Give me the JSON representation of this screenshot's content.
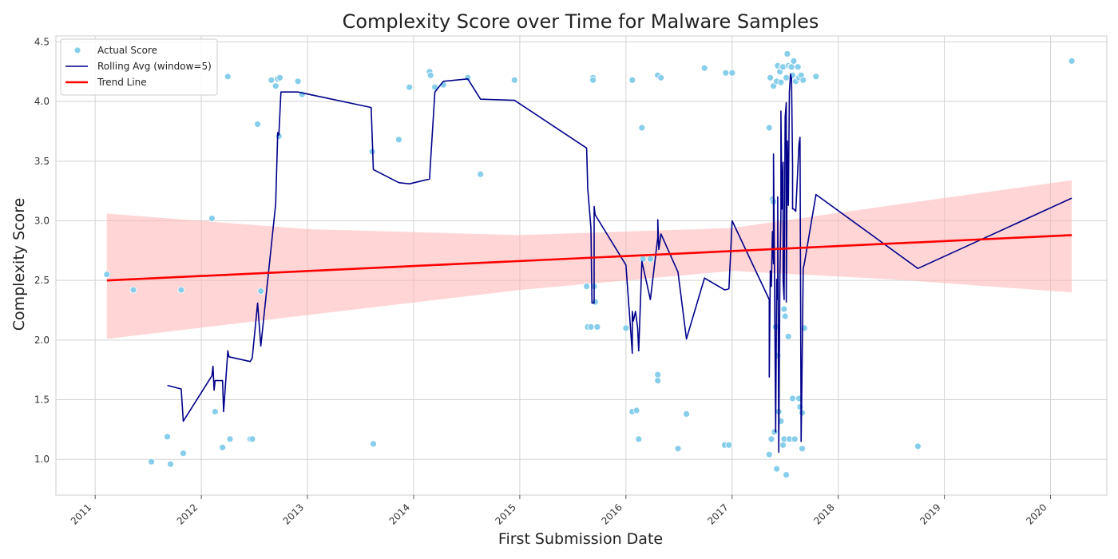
{
  "chart_data": {
    "type": "scatter",
    "title": "Complexity Score over Time for Malware Samples",
    "xlabel": "First Submission Date",
    "ylabel": "Complexity Score",
    "xlim": [
      2010.63,
      2020.53
    ],
    "ylim": [
      0.7,
      4.55
    ],
    "grid": true,
    "legend_position": "top-left",
    "x_ticks": [
      2011,
      2012,
      2013,
      2014,
      2015,
      2016,
      2017,
      2018,
      2019,
      2020
    ],
    "y_ticks": [
      1.0,
      1.5,
      2.0,
      2.5,
      3.0,
      3.5,
      4.0,
      4.5
    ],
    "colors": {
      "points": "#87ceeb",
      "rolling": "#00008b",
      "trend": "#ff0000",
      "band": "#ffb3b3"
    },
    "series": [
      {
        "name": "Actual Score",
        "kind": "scatter",
        "points": [
          [
            2011.11,
            2.55
          ],
          [
            2011.36,
            2.42
          ],
          [
            2011.53,
            0.98
          ],
          [
            2011.68,
            1.19
          ],
          [
            2011.71,
            0.96
          ],
          [
            2011.81,
            2.42
          ],
          [
            2011.83,
            1.05
          ],
          [
            2012.1,
            3.02
          ],
          [
            2012.13,
            1.4
          ],
          [
            2012.2,
            1.1
          ],
          [
            2012.25,
            4.21
          ],
          [
            2012.27,
            1.17
          ],
          [
            2012.46,
            1.17
          ],
          [
            2012.48,
            1.17
          ],
          [
            2012.53,
            3.81
          ],
          [
            2012.56,
            2.41
          ],
          [
            2012.66,
            4.18
          ],
          [
            2012.7,
            4.13
          ],
          [
            2012.72,
            4.19
          ],
          [
            2012.73,
            3.71
          ],
          [
            2012.74,
            4.2
          ],
          [
            2012.91,
            4.17
          ],
          [
            2012.95,
            4.06
          ],
          [
            2013.61,
            3.58
          ],
          [
            2013.62,
            1.13
          ],
          [
            2013.86,
            3.68
          ],
          [
            2013.96,
            4.12
          ],
          [
            2014.15,
            4.25
          ],
          [
            2014.16,
            4.22
          ],
          [
            2014.2,
            4.12
          ],
          [
            2014.28,
            4.14
          ],
          [
            2014.51,
            4.2
          ],
          [
            2014.63,
            3.39
          ],
          [
            2014.95,
            4.18
          ],
          [
            2015.63,
            2.45
          ],
          [
            2015.64,
            2.11
          ],
          [
            2015.67,
            2.11
          ],
          [
            2015.69,
            4.2
          ],
          [
            2015.69,
            4.18
          ],
          [
            2015.7,
            2.45
          ],
          [
            2015.71,
            2.32
          ],
          [
            2015.73,
            2.11
          ],
          [
            2016.0,
            2.1
          ],
          [
            2016.06,
            1.4
          ],
          [
            2016.06,
            4.18
          ],
          [
            2016.1,
            1.41
          ],
          [
            2016.12,
            1.17
          ],
          [
            2016.15,
            3.78
          ],
          [
            2016.16,
            2.68
          ],
          [
            2016.23,
            2.68
          ],
          [
            2016.3,
            1.71
          ],
          [
            2016.3,
            1.66
          ],
          [
            2016.3,
            4.22
          ],
          [
            2016.33,
            4.2
          ],
          [
            2016.49,
            1.09
          ],
          [
            2016.57,
            1.38
          ],
          [
            2016.74,
            4.28
          ],
          [
            2016.93,
            1.12
          ],
          [
            2016.94,
            4.24
          ],
          [
            2016.97,
            1.12
          ],
          [
            2017.0,
            4.24
          ],
          [
            2017.35,
            1.04
          ],
          [
            2017.35,
            3.78
          ],
          [
            2017.36,
            4.2
          ],
          [
            2017.37,
            1.17
          ],
          [
            2017.38,
            3.18
          ],
          [
            2017.39,
            3.16
          ],
          [
            2017.39,
            4.13
          ],
          [
            2017.4,
            1.23
          ],
          [
            2017.41,
            2.11
          ],
          [
            2017.42,
            0.92
          ],
          [
            2017.42,
            4.17
          ],
          [
            2017.43,
            4.3
          ],
          [
            2017.43,
            1.87
          ],
          [
            2017.44,
            1.4
          ],
          [
            2017.45,
            4.25
          ],
          [
            2017.46,
            1.32
          ],
          [
            2017.46,
            4.16
          ],
          [
            2017.47,
            4.29
          ],
          [
            2017.48,
            1.12
          ],
          [
            2017.48,
            4.29
          ],
          [
            2017.49,
            1.17
          ],
          [
            2017.49,
            2.26
          ],
          [
            2017.5,
            2.2
          ],
          [
            2017.51,
            0.87
          ],
          [
            2017.51,
            4.2
          ],
          [
            2017.52,
            4.4
          ],
          [
            2017.53,
            4.3
          ],
          [
            2017.53,
            2.03
          ],
          [
            2017.54,
            1.17
          ],
          [
            2017.55,
            4.29
          ],
          [
            2017.56,
            4.29
          ],
          [
            2017.57,
            4.22
          ],
          [
            2017.57,
            1.51
          ],
          [
            2017.58,
            4.34
          ],
          [
            2017.59,
            1.17
          ],
          [
            2017.6,
            4.17
          ],
          [
            2017.62,
            4.29
          ],
          [
            2017.63,
            1.51
          ],
          [
            2017.63,
            4.2
          ],
          [
            2017.64,
            1.44
          ],
          [
            2017.65,
            4.22
          ],
          [
            2017.66,
            1.39
          ],
          [
            2017.66,
            1.09
          ],
          [
            2017.67,
            4.18
          ],
          [
            2017.68,
            2.1
          ],
          [
            2017.79,
            4.21
          ],
          [
            2018.75,
            1.11
          ],
          [
            2020.2,
            4.34
          ]
        ]
      },
      {
        "name": "Rolling Avg (window=5)",
        "kind": "line",
        "points": [
          [
            2011.68,
            1.62
          ],
          [
            2011.81,
            1.59
          ],
          [
            2011.83,
            1.32
          ],
          [
            2012.1,
            1.7
          ],
          [
            2012.11,
            1.78
          ],
          [
            2012.12,
            1.58
          ],
          [
            2012.13,
            1.66
          ],
          [
            2012.2,
            1.66
          ],
          [
            2012.21,
            1.4
          ],
          [
            2012.25,
            1.91
          ],
          [
            2012.26,
            1.86
          ],
          [
            2012.46,
            1.82
          ],
          [
            2012.48,
            1.85
          ],
          [
            2012.53,
            2.31
          ],
          [
            2012.56,
            1.95
          ],
          [
            2012.7,
            3.14
          ],
          [
            2012.72,
            3.74
          ],
          [
            2012.73,
            3.72
          ],
          [
            2012.75,
            4.08
          ],
          [
            2012.91,
            4.08
          ],
          [
            2013.6,
            3.95
          ],
          [
            2013.62,
            3.43
          ],
          [
            2013.86,
            3.32
          ],
          [
            2013.96,
            3.31
          ],
          [
            2014.15,
            3.35
          ],
          [
            2014.16,
            3.5
          ],
          [
            2014.2,
            4.08
          ],
          [
            2014.28,
            4.17
          ],
          [
            2014.51,
            4.19
          ],
          [
            2014.63,
            4.02
          ],
          [
            2014.95,
            4.01
          ],
          [
            2015.63,
            3.61
          ],
          [
            2015.64,
            3.27
          ],
          [
            2015.67,
            2.94
          ],
          [
            2015.68,
            2.31
          ],
          [
            2015.7,
            2.31
          ],
          [
            2015.7,
            3.12
          ],
          [
            2015.71,
            3.05
          ],
          [
            2016.0,
            2.63
          ],
          [
            2016.06,
            1.89
          ],
          [
            2016.06,
            2.24
          ],
          [
            2016.07,
            2.16
          ],
          [
            2016.09,
            2.24
          ],
          [
            2016.11,
            2.1
          ],
          [
            2016.12,
            1.91
          ],
          [
            2016.15,
            2.66
          ],
          [
            2016.23,
            2.34
          ],
          [
            2016.3,
            2.86
          ],
          [
            2016.3,
            3.01
          ],
          [
            2016.31,
            2.76
          ],
          [
            2016.33,
            2.89
          ],
          [
            2016.49,
            2.57
          ],
          [
            2016.57,
            2.01
          ],
          [
            2016.74,
            2.52
          ],
          [
            2016.93,
            2.42
          ],
          [
            2016.97,
            2.43
          ],
          [
            2017.0,
            3.0
          ],
          [
            2017.35,
            2.34
          ],
          [
            2017.35,
            1.69
          ],
          [
            2017.36,
            2.58
          ],
          [
            2017.37,
            2.45
          ],
          [
            2017.38,
            2.91
          ],
          [
            2017.39,
            2.64
          ],
          [
            2017.39,
            3.56
          ],
          [
            2017.4,
            2.53
          ],
          [
            2017.41,
            1.23
          ],
          [
            2017.42,
            2.51
          ],
          [
            2017.42,
            2.47
          ],
          [
            2017.43,
            2.34
          ],
          [
            2017.43,
            3.2
          ],
          [
            2017.44,
            1.06
          ],
          [
            2017.45,
            2.52
          ],
          [
            2017.46,
            3.07
          ],
          [
            2017.46,
            3.92
          ],
          [
            2017.47,
            3.1
          ],
          [
            2017.48,
            3.49
          ],
          [
            2017.48,
            2.5
          ],
          [
            2017.49,
            2.34
          ],
          [
            2017.49,
            2.38
          ],
          [
            2017.5,
            3.87
          ],
          [
            2017.51,
            3.99
          ],
          [
            2017.51,
            2.32
          ],
          [
            2017.52,
            3.67
          ],
          [
            2017.53,
            3.13
          ],
          [
            2017.54,
            4.08
          ],
          [
            2017.55,
            4.23
          ],
          [
            2017.56,
            4.19
          ],
          [
            2017.57,
            3.46
          ],
          [
            2017.57,
            3.1
          ],
          [
            2017.58,
            3.1
          ],
          [
            2017.6,
            3.08
          ],
          [
            2017.63,
            3.64
          ],
          [
            2017.64,
            3.7
          ],
          [
            2017.65,
            1.15
          ],
          [
            2017.66,
            1.83
          ],
          [
            2017.67,
            2.6
          ],
          [
            2017.68,
            2.64
          ],
          [
            2017.79,
            3.22
          ],
          [
            2018.75,
            2.6
          ],
          [
            2020.2,
            3.19
          ]
        ]
      },
      {
        "name": "Trend Line",
        "kind": "regression",
        "points": [
          [
            2011.11,
            2.5
          ],
          [
            2020.2,
            2.88
          ]
        ],
        "ci_upper": [
          [
            2011.11,
            3.06
          ],
          [
            2013.0,
            2.93
          ],
          [
            2015.0,
            2.88
          ],
          [
            2017.0,
            2.94
          ],
          [
            2018.5,
            3.13
          ],
          [
            2020.2,
            3.34
          ]
        ],
        "ci_lower": [
          [
            2011.11,
            2.01
          ],
          [
            2013.0,
            2.21
          ],
          [
            2015.0,
            2.42
          ],
          [
            2017.0,
            2.58
          ],
          [
            2018.5,
            2.51
          ],
          [
            2020.2,
            2.4
          ]
        ]
      }
    ]
  }
}
